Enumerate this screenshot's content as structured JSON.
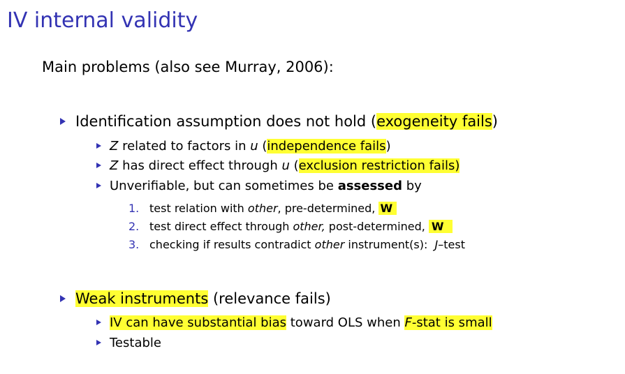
{
  "title": "IV internal validity",
  "intro": "Main problems (also see Murray, 2006):",
  "accent_color": "#3333b3",
  "highlight_color": "#ffff33",
  "bullet_icon": "triangle-right-icon",
  "problem1": {
    "pre": "Identification assumption does not hold (",
    "hl": "exogeneity fails",
    "post": ")",
    "sub1": {
      "var": "Z",
      "text": " related to factors in ",
      "var2": "u",
      "paren": " (",
      "hl": "independence fails",
      "post": ")"
    },
    "sub2": {
      "var": "Z",
      "text": " has direct effect through ",
      "var2": "u",
      "paren": " (",
      "hl": "exclusion restriction fails)"
    },
    "sub3": {
      "text": "Unverifiable, but can sometimes be ",
      "bold": "assessed",
      "post": " by"
    },
    "checks": [
      {
        "num": "1.",
        "pre": "test relation with ",
        "em": "other",
        "post": ", pre-determined, ",
        "bold": "W"
      },
      {
        "num": "2.",
        "pre": "test direct effect through ",
        "em": "other,",
        "post": " post-determined, ",
        "bold": "W"
      },
      {
        "num": "3.",
        "pre": "checking if results contradict ",
        "em": "other",
        "post": " instrument(s):  ",
        "em2": "J",
        "tail": "–test"
      }
    ]
  },
  "problem2": {
    "hl": "Weak instruments",
    "post": " (relevance fails)",
    "sub1": {
      "hl": "IV can have substantial bias",
      "mid": " toward OLS when ",
      "hl2_var": "F",
      "hl2": "-stat is small"
    },
    "sub2": "Testable"
  }
}
